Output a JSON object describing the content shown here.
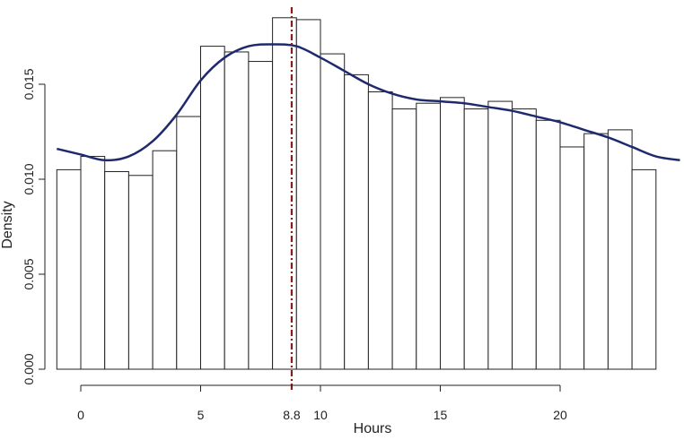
{
  "chart_data": {
    "type": "bar",
    "subtype": "histogram-with-density-curve",
    "xlabel": "Hours",
    "ylabel": "Density",
    "xlim": [
      -1,
      25
    ],
    "ylim": [
      0,
      0.0185
    ],
    "x_ticks": [
      0,
      5,
      10,
      15,
      20
    ],
    "y_ticks": [
      0.0,
      0.005,
      0.01,
      0.015
    ],
    "y_tick_labels": [
      "0.000",
      "0.005",
      "0.010",
      "0.015"
    ],
    "bin_width": 1,
    "bin_starts": [
      -1,
      0,
      1,
      2,
      3,
      4,
      5,
      6,
      7,
      8,
      9,
      10,
      11,
      12,
      13,
      14,
      15,
      16,
      17,
      18,
      19,
      20,
      21,
      22,
      23
    ],
    "values": [
      0.0105,
      0.0112,
      0.0104,
      0.0102,
      0.0115,
      0.0133,
      0.017,
      0.0167,
      0.0162,
      0.0185,
      0.0184,
      0.0166,
      0.0155,
      0.0146,
      0.0137,
      0.014,
      0.0143,
      0.0137,
      0.0141,
      0.0137,
      0.0131,
      0.0117,
      0.0124,
      0.0126,
      0.0105
    ],
    "series": [
      {
        "type": "line",
        "color": "#1f2a6e",
        "x": [
          -1,
          0,
          1,
          2,
          3,
          4,
          5,
          6,
          7,
          8,
          9,
          10,
          11,
          12,
          13,
          14,
          15,
          16,
          17,
          18,
          19,
          20,
          21,
          22,
          23,
          24,
          25
        ],
        "values": [
          0.0116,
          0.0113,
          0.011,
          0.0112,
          0.012,
          0.0134,
          0.0152,
          0.0164,
          0.017,
          0.0171,
          0.017,
          0.0164,
          0.0157,
          0.015,
          0.0145,
          0.0142,
          0.0141,
          0.014,
          0.0138,
          0.0136,
          0.0133,
          0.013,
          0.0126,
          0.0122,
          0.0117,
          0.0112,
          0.011
        ]
      }
    ],
    "vline": {
      "x": 8.8,
      "label": "8.8",
      "color": "#8b1a1a",
      "style": "dot-dash"
    }
  }
}
